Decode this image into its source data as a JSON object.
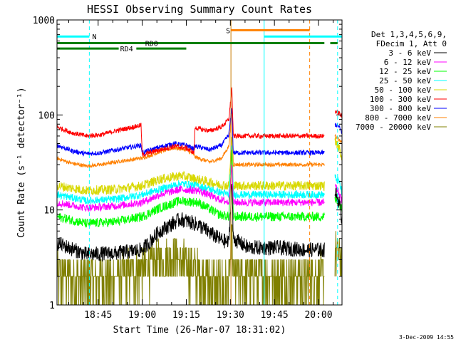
{
  "chart_data": {
    "type": "line",
    "title": "HESSI Observing Summary Count Rates",
    "xlabel": "Start Time (26-Mar-07 18:31:02)",
    "ylabel": "Count Rate (s⁻¹ detector⁻¹)",
    "yscale": "log",
    "ylim": [
      1,
      1000
    ],
    "x_units": "minutes after 18:31:02",
    "xlim": [
      0,
      97
    ],
    "x_ticks": [
      {
        "t": 14,
        "label": "18:45"
      },
      {
        "t": 29,
        "label": "19:00"
      },
      {
        "t": 44,
        "label": "19:15"
      },
      {
        "t": 59,
        "label": "19:30"
      },
      {
        "t": 74,
        "label": "19:45"
      },
      {
        "t": 89,
        "label": "20:00"
      }
    ],
    "y_ticks": [
      {
        "v": 1,
        "label": "1"
      },
      {
        "v": 10,
        "label": "10"
      },
      {
        "v": 100,
        "label": "100"
      },
      {
        "v": 1000,
        "label": "1000"
      }
    ],
    "legend": {
      "placement": "right",
      "header": [
        "Det 1,3,4,5,6,9,",
        "FDecim 1, Att 0"
      ],
      "entries": [
        {
          "label": "3 - 6 keV",
          "color": "#000000"
        },
        {
          "label": "6 - 12 keV",
          "color": "#ff00ff"
        },
        {
          "label": "12 - 25 keV",
          "color": "#00ff00"
        },
        {
          "label": "25 - 50 keV",
          "color": "#00ffff"
        },
        {
          "label": "50 - 100 keV",
          "color": "#d8d800"
        },
        {
          "label": "100 - 300 keV",
          "color": "#ff0000"
        },
        {
          "label": "300 - 800 keV",
          "color": "#0000ff"
        },
        {
          "label": "800 - 7000 keV",
          "color": "#ff8000"
        },
        {
          "label": "7000 - 20000 keV",
          "color": "#808000"
        }
      ]
    },
    "data_gaps": [
      [
        91,
        94.5
      ]
    ],
    "series": [
      {
        "label": "3 - 6 keV",
        "color": "#000000",
        "noise": 0.08,
        "points": [
          [
            0,
            4.5
          ],
          [
            4,
            4
          ],
          [
            10,
            3.4
          ],
          [
            20,
            3.5
          ],
          [
            29,
            3.8
          ],
          [
            35,
            6
          ],
          [
            42,
            8
          ],
          [
            48,
            7
          ],
          [
            55,
            5
          ],
          [
            58.5,
            4.5
          ],
          [
            59.5,
            20
          ],
          [
            60,
            5
          ],
          [
            65,
            4
          ],
          [
            75,
            4
          ],
          [
            85,
            3.8
          ],
          [
            91,
            3.8
          ],
          [
            94.5,
            16
          ],
          [
            96,
            12
          ],
          [
            97,
            8
          ]
        ]
      },
      {
        "label": "6 - 12 keV",
        "color": "#ff00ff",
        "noise": 0.04,
        "points": [
          [
            0,
            12
          ],
          [
            10,
            10.5
          ],
          [
            20,
            11
          ],
          [
            29,
            12
          ],
          [
            35,
            14.5
          ],
          [
            42,
            16.5
          ],
          [
            48,
            16
          ],
          [
            55,
            13
          ],
          [
            58.5,
            12
          ],
          [
            59.5,
            30
          ],
          [
            60,
            12
          ],
          [
            91,
            12
          ],
          [
            94.5,
            18
          ],
          [
            96,
            15
          ],
          [
            97,
            12
          ]
        ]
      },
      {
        "label": "12 - 25 keV",
        "color": "#00ff00",
        "noise": 0.05,
        "points": [
          [
            0,
            8.5
          ],
          [
            10,
            7.2
          ],
          [
            20,
            7.5
          ],
          [
            29,
            8.5
          ],
          [
            35,
            10.5
          ],
          [
            42,
            12.5
          ],
          [
            48,
            12
          ],
          [
            55,
            9
          ],
          [
            58.5,
            8.5
          ],
          [
            59.5,
            40
          ],
          [
            60,
            8.5
          ],
          [
            91,
            8.5
          ],
          [
            94.5,
            13
          ],
          [
            96,
            12
          ],
          [
            97,
            10
          ]
        ]
      },
      {
        "label": "25 - 50 keV",
        "color": "#00ffff",
        "noise": 0.04,
        "points": [
          [
            0,
            14.5
          ],
          [
            10,
            12.5
          ],
          [
            20,
            13
          ],
          [
            29,
            14.5
          ],
          [
            35,
            16.5
          ],
          [
            42,
            19
          ],
          [
            48,
            18
          ],
          [
            55,
            15.5
          ],
          [
            58.5,
            14.5
          ],
          [
            59.5,
            45
          ],
          [
            60,
            14.5
          ],
          [
            91,
            14.5
          ],
          [
            94.5,
            22
          ],
          [
            96,
            20
          ],
          [
            97,
            15
          ]
        ]
      },
      {
        "label": "50 - 100 keV",
        "color": "#d8d800",
        "noise": 0.05,
        "points": [
          [
            0,
            18
          ],
          [
            10,
            16
          ],
          [
            20,
            16.5
          ],
          [
            29,
            18
          ],
          [
            35,
            21
          ],
          [
            42,
            23
          ],
          [
            48,
            21
          ],
          [
            55,
            18.5
          ],
          [
            58.5,
            18
          ],
          [
            59.5,
            60
          ],
          [
            60,
            18
          ],
          [
            91,
            18
          ],
          [
            94.5,
            55
          ],
          [
            96,
            45
          ],
          [
            97,
            35
          ]
        ]
      },
      {
        "label": "100 - 300 keV",
        "color": "#ff0000",
        "noise": 0.025,
        "points": [
          [
            0,
            75
          ],
          [
            5,
            65
          ],
          [
            10,
            60
          ],
          [
            15,
            62
          ],
          [
            20,
            68
          ],
          [
            28.6,
            78
          ],
          [
            29,
            38
          ],
          [
            35,
            43
          ],
          [
            40,
            47
          ],
          [
            44,
            45
          ],
          [
            46.6,
            40
          ],
          [
            47,
            73
          ],
          [
            52,
            68
          ],
          [
            56,
            75
          ],
          [
            58.5,
            90
          ],
          [
            59.5,
            190
          ],
          [
            60,
            60
          ],
          [
            91,
            60
          ],
          [
            94.5,
            110
          ],
          [
            96,
            105
          ],
          [
            97,
            95
          ]
        ]
      },
      {
        "label": "300 - 800 keV",
        "color": "#0000ff",
        "noise": 0.025,
        "points": [
          [
            0,
            48
          ],
          [
            5,
            42
          ],
          [
            10,
            39
          ],
          [
            15,
            40
          ],
          [
            20,
            43
          ],
          [
            28.6,
            48
          ],
          [
            29,
            40
          ],
          [
            35,
            46
          ],
          [
            40,
            50
          ],
          [
            44,
            48
          ],
          [
            46.6,
            44
          ],
          [
            47,
            47
          ],
          [
            52,
            43
          ],
          [
            56,
            48
          ],
          [
            58.5,
            62
          ],
          [
            59.5,
            120
          ],
          [
            60,
            40
          ],
          [
            91,
            40
          ],
          [
            94.5,
            80
          ],
          [
            96,
            75
          ],
          [
            97,
            65
          ]
        ]
      },
      {
        "label": "800 - 7000 keV",
        "color": "#ff8000",
        "noise": 0.02,
        "points": [
          [
            0,
            35
          ],
          [
            5,
            31
          ],
          [
            10,
            29
          ],
          [
            15,
            30
          ],
          [
            20,
            32
          ],
          [
            28.6,
            35
          ],
          [
            29,
            35
          ],
          [
            35,
            41
          ],
          [
            40,
            45
          ],
          [
            44,
            43
          ],
          [
            46.6,
            38
          ],
          [
            47,
            36
          ],
          [
            52,
            32
          ],
          [
            56,
            35
          ],
          [
            58.5,
            47
          ],
          [
            59.5,
            115
          ],
          [
            60,
            30
          ],
          [
            91,
            30
          ],
          [
            94.5,
            60
          ],
          [
            96,
            55
          ],
          [
            97,
            50
          ]
        ]
      },
      {
        "label": "7000 - 20000 keV",
        "color": "#808000",
        "noise": 0.25,
        "points": [
          [
            0,
            2
          ],
          [
            8,
            1.8
          ],
          [
            20,
            1.9
          ],
          [
            29,
            2.4
          ],
          [
            40,
            3.2
          ],
          [
            47,
            2.2
          ],
          [
            55,
            1.6
          ],
          [
            58.5,
            1.6
          ],
          [
            59.5,
            5
          ],
          [
            60,
            2
          ],
          [
            91,
            2
          ],
          [
            94.5,
            3.5
          ],
          [
            97,
            3
          ]
        ]
      }
    ],
    "annotations": {
      "vlines": [
        {
          "t": 0,
          "color": "#00ffff",
          "style": "solid"
        },
        {
          "t": 11,
          "color": "#00ffff",
          "style": "dashed"
        },
        {
          "t": 59.2,
          "color": "#c87a00",
          "style": "solid"
        },
        {
          "t": 70.5,
          "color": "#00ffff",
          "style": "solid"
        },
        {
          "t": 86,
          "color": "#ff8000",
          "style": "dashed"
        },
        {
          "t": 95.5,
          "color": "#00ffff",
          "style": "dashed"
        }
      ],
      "flag_bars": [
        {
          "v": 670,
          "x0": 0,
          "x1": 11,
          "color": "#00ffff",
          "label": "N",
          "label_at": 12
        },
        {
          "v": 670,
          "x0": 70.5,
          "x1": 97,
          "color": "#00ffff"
        },
        {
          "v": 780,
          "x0": 59.2,
          "x1": 86,
          "color": "#ff8000",
          "label": "S",
          "label_at": 57.5
        },
        {
          "v": 570,
          "x0": 0,
          "x1": 91,
          "color": "#008000",
          "label": "RD0",
          "label_at": 30
        },
        {
          "v": 570,
          "x0": 93,
          "x1": 95.5,
          "color": "#008000"
        },
        {
          "v": 500,
          "x0": 0,
          "x1": 21,
          "color": "#008000"
        },
        {
          "v": 500,
          "x0": 27,
          "x1": 44,
          "color": "#008000",
          "label": "RD4",
          "label_at": 21.5
        }
      ]
    }
  },
  "footer": {
    "date": "3-Dec-2009 14:55"
  }
}
